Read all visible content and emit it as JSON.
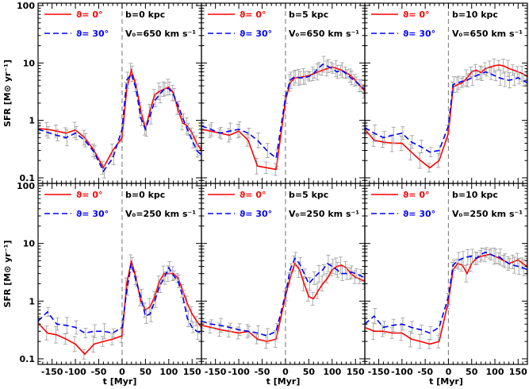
{
  "figure": {
    "xlabel": "t [Myr]",
    "ylabel": "SFR [M⊙ yr⁻¹]"
  },
  "colors": {
    "red": "#ff0000",
    "blue": "#0000ff",
    "errorbar": "#999999",
    "axis": "#000000",
    "vline": "#888888"
  },
  "chart_data": [
    {
      "type": "line",
      "legend": [
        "ϑ= 0°",
        "ϑ= 30°"
      ],
      "annotation": [
        "b=0 kpc",
        "V₀=650 km s⁻¹"
      ],
      "xlim": [
        -180,
        170
      ],
      "ylim": [
        0.08,
        110
      ],
      "yscale": "log",
      "xticks": [
        -150,
        -100,
        -50,
        0,
        50,
        100,
        150
      ],
      "yticks": [
        0.1,
        1,
        10,
        100
      ],
      "x": [
        -180,
        -160,
        -140,
        -120,
        -100,
        -80,
        -60,
        -40,
        -20,
        0,
        10,
        20,
        30,
        40,
        50,
        60,
        70,
        80,
        90,
        100,
        110,
        120,
        130,
        140,
        150,
        160,
        170
      ],
      "series": [
        {
          "name": "ϑ= 0°",
          "color": "red",
          "dash": "solid",
          "values": [
            0.72,
            0.7,
            0.65,
            0.6,
            0.68,
            0.5,
            0.3,
            0.15,
            0.3,
            0.5,
            3.5,
            7.5,
            4.0,
            1.5,
            0.7,
            1.5,
            2.8,
            3.2,
            3.5,
            3.8,
            3.0,
            1.5,
            0.9,
            0.8,
            0.6,
            0.4,
            0.3
          ]
        },
        {
          "name": "ϑ= 30°",
          "color": "blue",
          "dash": "dash",
          "values": [
            0.7,
            0.62,
            0.55,
            0.5,
            0.6,
            0.45,
            0.28,
            0.13,
            0.22,
            0.7,
            5.0,
            6.5,
            3.5,
            1.1,
            0.7,
            1.2,
            2.2,
            2.8,
            3.5,
            3.6,
            2.8,
            1.8,
            1.1,
            0.7,
            0.45,
            0.3,
            0.25
          ]
        }
      ]
    },
    {
      "type": "line",
      "legend": [
        "ϑ= 0°",
        "ϑ= 30°"
      ],
      "annotation": [
        "b=5 kpc",
        "V₀=650 km s⁻¹"
      ],
      "xlim": [
        -180,
        170
      ],
      "ylim": [
        0.08,
        110
      ],
      "yscale": "log",
      "xticks": [
        -150,
        -100,
        -50,
        0,
        50,
        100,
        150
      ],
      "yticks": [
        0.1,
        1,
        10,
        100
      ],
      "x": [
        -180,
        -160,
        -140,
        -120,
        -100,
        -80,
        -60,
        -40,
        -20,
        0,
        10,
        20,
        30,
        40,
        50,
        60,
        70,
        80,
        90,
        100,
        110,
        120,
        130,
        140,
        150,
        160,
        170
      ],
      "series": [
        {
          "name": "ϑ= 0°",
          "color": "red",
          "dash": "solid",
          "values": [
            0.7,
            0.65,
            0.6,
            0.55,
            0.65,
            0.45,
            0.16,
            0.15,
            0.14,
            2.2,
            4.5,
            5.5,
            5.6,
            5.8,
            6.0,
            6.5,
            7.0,
            7.5,
            8.0,
            8.5,
            8.0,
            7.5,
            6.8,
            6.0,
            5.0,
            4.0,
            3.2
          ]
        },
        {
          "name": "ϑ= 30°",
          "color": "blue",
          "dash": "dash",
          "values": [
            0.8,
            0.7,
            0.6,
            0.65,
            0.7,
            0.6,
            0.45,
            0.3,
            0.22,
            2.5,
            5.0,
            5.8,
            5.5,
            5.5,
            5.8,
            6.5,
            8.0,
            9.5,
            8.8,
            8.0,
            7.0,
            7.5,
            6.5,
            5.5,
            4.8,
            4.0,
            3.5
          ]
        }
      ]
    },
    {
      "type": "line",
      "legend": [
        "ϑ= 0°",
        "ϑ= 30°"
      ],
      "annotation": [
        "b=10 kpc",
        "V₀=650 km s⁻¹"
      ],
      "xlim": [
        -180,
        170
      ],
      "ylim": [
        0.08,
        110
      ],
      "yscale": "log",
      "xticks": [
        -150,
        -100,
        -50,
        0,
        50,
        100,
        150
      ],
      "yticks": [
        0.1,
        1,
        10,
        100
      ],
      "x": [
        -180,
        -160,
        -140,
        -120,
        -100,
        -80,
        -60,
        -40,
        -20,
        0,
        10,
        20,
        30,
        40,
        50,
        60,
        70,
        80,
        90,
        100,
        110,
        120,
        130,
        140,
        150,
        160,
        170
      ],
      "series": [
        {
          "name": "ϑ= 0°",
          "color": "red",
          "dash": "solid",
          "values": [
            0.7,
            0.45,
            0.42,
            0.4,
            0.4,
            0.28,
            0.2,
            0.15,
            0.2,
            0.6,
            3.8,
            4.2,
            4.5,
            5.5,
            7.0,
            7.5,
            6.8,
            8.0,
            8.5,
            9.0,
            9.2,
            8.8,
            8.0,
            7.5,
            7.0,
            6.5,
            5.8
          ]
        },
        {
          "name": "ϑ= 30°",
          "color": "blue",
          "dash": "dash",
          "values": [
            0.75,
            0.6,
            0.5,
            0.55,
            0.6,
            0.42,
            0.35,
            0.28,
            0.3,
            0.8,
            4.2,
            4.5,
            4.8,
            5.0,
            5.5,
            6.0,
            6.5,
            7.0,
            6.5,
            6.0,
            5.5,
            5.2,
            5.0,
            5.2,
            5.5,
            5.0,
            4.5
          ]
        }
      ]
    },
    {
      "type": "line",
      "legend": [
        "ϑ= 0°",
        "ϑ= 30°"
      ],
      "annotation": [
        "b=0 kpc",
        "V₀=250 km s⁻¹"
      ],
      "xlim": [
        -180,
        170
      ],
      "ylim": [
        0.08,
        110
      ],
      "yscale": "log",
      "xticks": [
        -150,
        -100,
        -50,
        0,
        50,
        100,
        150
      ],
      "yticks": [
        0.1,
        1,
        10,
        100
      ],
      "x": [
        -180,
        -160,
        -140,
        -120,
        -100,
        -80,
        -60,
        -40,
        -20,
        0,
        10,
        20,
        30,
        40,
        50,
        60,
        70,
        80,
        90,
        100,
        110,
        120,
        130,
        140,
        150,
        160,
        170
      ],
      "series": [
        {
          "name": "ϑ= 0°",
          "color": "red",
          "dash": "solid",
          "values": [
            0.42,
            0.28,
            0.26,
            0.22,
            0.18,
            0.12,
            0.18,
            0.2,
            0.22,
            0.25,
            2.0,
            5.0,
            2.5,
            1.0,
            0.7,
            0.8,
            1.2,
            2.2,
            3.0,
            3.0,
            3.0,
            2.5,
            1.5,
            0.9,
            0.6,
            0.45,
            0.35
          ]
        },
        {
          "name": "ϑ= 30°",
          "color": "blue",
          "dash": "dash",
          "values": [
            0.45,
            0.65,
            0.4,
            0.38,
            0.35,
            0.28,
            0.3,
            0.3,
            0.28,
            0.35,
            1.5,
            4.5,
            2.2,
            1.2,
            0.55,
            0.6,
            1.0,
            1.8,
            2.5,
            3.8,
            2.8,
            2.2,
            1.2,
            0.5,
            0.35,
            0.3,
            0.28
          ]
        }
      ]
    },
    {
      "type": "line",
      "legend": [
        "ϑ= 0°",
        "ϑ= 30°"
      ],
      "annotation": [
        "b=5 kpc",
        "V₀=250 km s⁻¹"
      ],
      "xlim": [
        -180,
        170
      ],
      "ylim": [
        0.08,
        110
      ],
      "yscale": "log",
      "xticks": [
        -150,
        -100,
        -50,
        0,
        50,
        100,
        150
      ],
      "yticks": [
        0.1,
        1,
        10,
        100
      ],
      "x": [
        -180,
        -160,
        -140,
        -120,
        -100,
        -80,
        -60,
        -40,
        -20,
        0,
        10,
        20,
        30,
        40,
        50,
        60,
        70,
        80,
        90,
        100,
        110,
        120,
        130,
        140,
        150,
        160,
        170
      ],
      "series": [
        {
          "name": "ϑ= 0°",
          "color": "red",
          "dash": "solid",
          "values": [
            0.38,
            0.35,
            0.32,
            0.3,
            0.28,
            0.3,
            0.22,
            0.2,
            0.22,
            1.2,
            2.5,
            4.5,
            3.5,
            2.0,
            1.2,
            1.1,
            1.5,
            2.0,
            2.5,
            3.5,
            4.0,
            4.2,
            3.8,
            3.0,
            2.6,
            2.4,
            2.2
          ]
        },
        {
          "name": "ϑ= 30°",
          "color": "blue",
          "dash": "dash",
          "values": [
            0.45,
            0.4,
            0.38,
            0.35,
            0.32,
            0.3,
            0.28,
            0.25,
            0.3,
            1.3,
            3.5,
            5.5,
            4.5,
            3.0,
            2.0,
            2.5,
            3.0,
            3.5,
            4.5,
            4.0,
            3.5,
            3.0,
            3.0,
            3.2,
            3.0,
            2.8,
            2.5
          ]
        }
      ]
    },
    {
      "type": "line",
      "legend": [
        "ϑ= 0°",
        "ϑ= 30°"
      ],
      "annotation": [
        "b=10 kpc",
        "V₀=250 km s⁻¹"
      ],
      "xlim": [
        -180,
        170
      ],
      "ylim": [
        0.08,
        110
      ],
      "yscale": "log",
      "xticks": [
        -150,
        -100,
        -50,
        0,
        50,
        100,
        150
      ],
      "yticks": [
        0.1,
        1,
        10,
        100
      ],
      "x": [
        -180,
        -160,
        -140,
        -120,
        -100,
        -80,
        -60,
        -40,
        -20,
        0,
        10,
        20,
        30,
        40,
        50,
        60,
        70,
        80,
        90,
        100,
        110,
        120,
        130,
        140,
        150,
        160,
        170
      ],
      "series": [
        {
          "name": "ϑ= 0°",
          "color": "red",
          "dash": "solid",
          "values": [
            0.35,
            0.3,
            0.3,
            0.28,
            0.28,
            0.22,
            0.2,
            0.18,
            0.2,
            1.0,
            3.5,
            4.5,
            4.2,
            3.0,
            4.5,
            5.5,
            6.0,
            6.2,
            6.5,
            6.0,
            5.5,
            5.0,
            4.5,
            4.8,
            5.2,
            4.5,
            4.0
          ]
        },
        {
          "name": "ϑ= 30°",
          "color": "blue",
          "dash": "dash",
          "values": [
            0.4,
            0.55,
            0.35,
            0.38,
            0.4,
            0.35,
            0.32,
            0.28,
            0.35,
            1.2,
            4.2,
            5.0,
            5.5,
            5.8,
            6.0,
            5.5,
            6.5,
            7.0,
            6.5,
            6.0,
            5.8,
            5.0,
            4.5,
            4.2,
            4.0,
            3.8,
            3.5
          ]
        }
      ]
    }
  ]
}
